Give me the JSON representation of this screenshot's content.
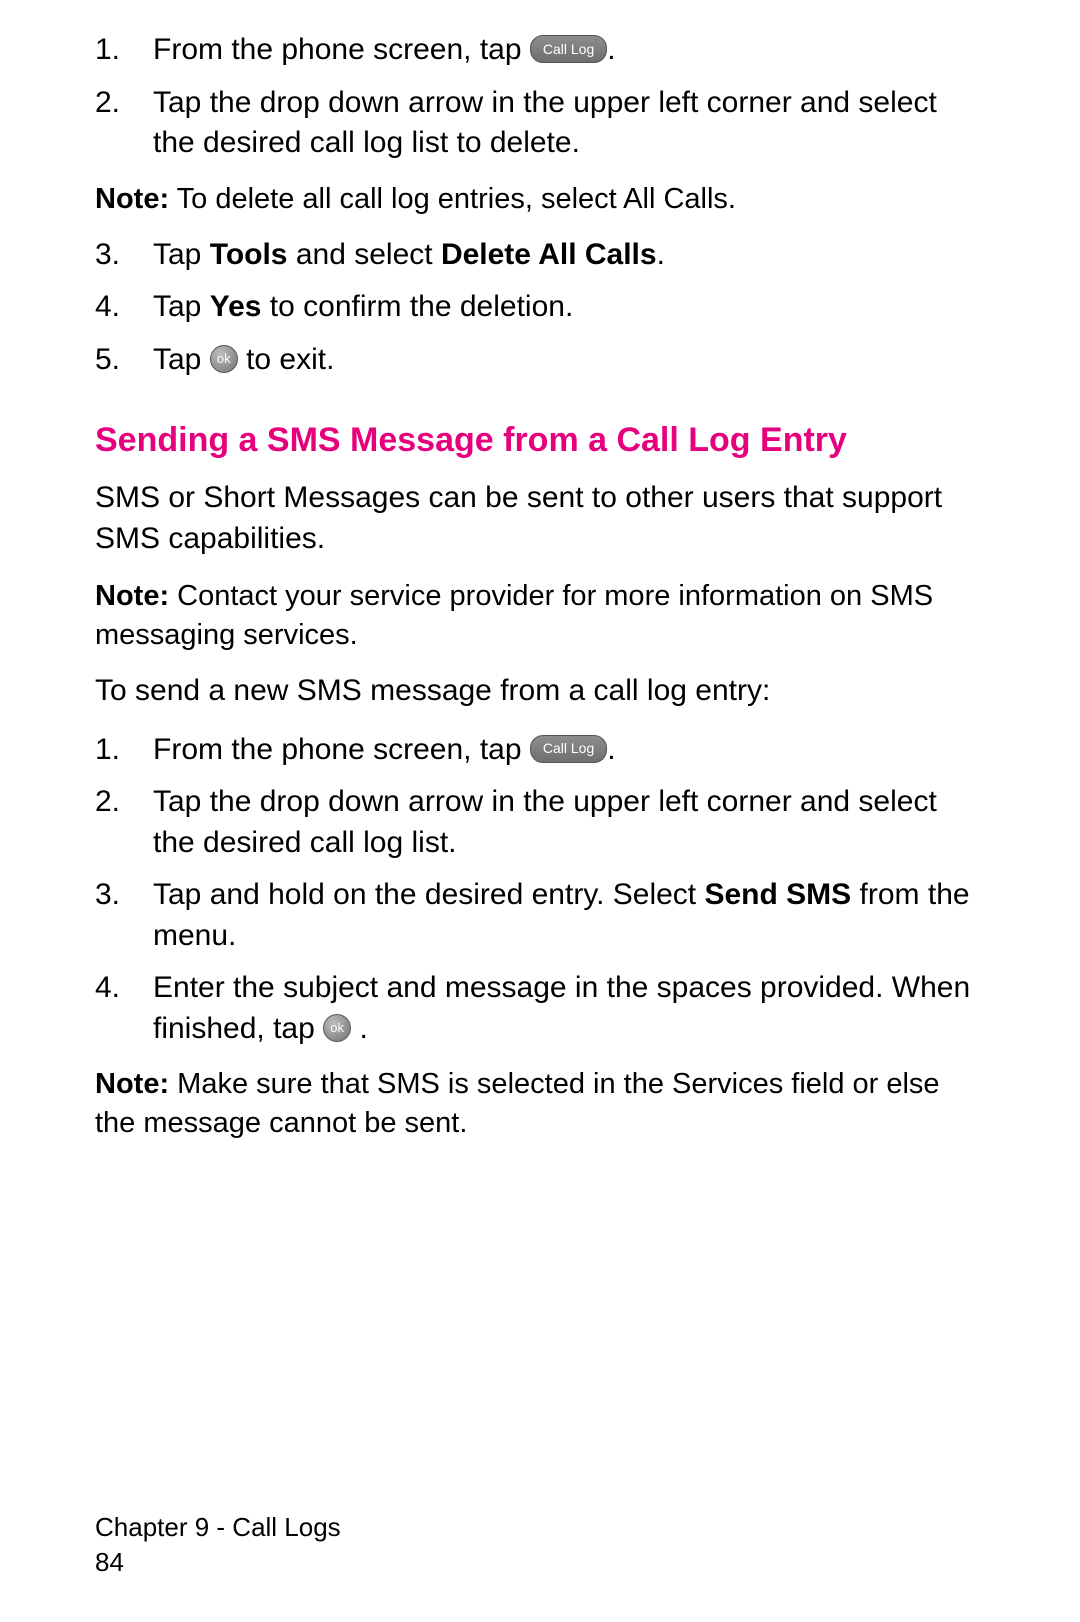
{
  "icons": {
    "call_log": "Call Log",
    "ok": "ok"
  },
  "section1": {
    "steps": [
      {
        "num": "1.",
        "pre": "From the phone screen, tap ",
        "icon": "call_log",
        "post": "."
      },
      {
        "num": "2.",
        "text": "Tap the drop down arrow in the upper left corner and select the desired call log list to delete."
      }
    ],
    "note1": {
      "label": "Note:",
      "text": " To delete all call log entries, select All Calls."
    },
    "steps_b": [
      {
        "num": "3.",
        "pre": "Tap ",
        "b1": "Tools",
        "mid": " and select ",
        "b2": "Delete All Calls",
        "post": "."
      },
      {
        "num": "4.",
        "pre": "Tap ",
        "b1": "Yes",
        "post": " to confirm the deletion."
      },
      {
        "num": "5.",
        "pre": "Tap ",
        "icon": "ok",
        "post": " to exit."
      }
    ]
  },
  "section2": {
    "heading": "Sending a SMS Message from a Call Log Entry",
    "intro": "SMS or Short Messages can be sent to other users that support SMS capabilities.",
    "note1": {
      "label": "Note:",
      "text": " Contact your service provider for more information on SMS messaging services."
    },
    "lead": "To send a new SMS message from a call log entry:",
    "steps": [
      {
        "num": "1.",
        "pre": "From the phone screen, tap ",
        "icon": "call_log",
        "post": "."
      },
      {
        "num": "2.",
        "text": "Tap the drop down arrow in the upper left corner and select the desired call log list."
      },
      {
        "num": "3.",
        "pre": "Tap and hold on the desired entry. Select ",
        "b1": "Send SMS",
        "post": " from the menu."
      },
      {
        "num": "4.",
        "pre": "Enter the subject and message in the spaces provided. When finished, tap ",
        "icon": "ok",
        "post": "."
      }
    ],
    "note2": {
      "label": "Note:",
      "text": " Make sure that SMS is selected in the Services field or else the message cannot be sent."
    }
  },
  "footer": {
    "chapter": "Chapter 9 - Call Logs",
    "page": "84"
  }
}
